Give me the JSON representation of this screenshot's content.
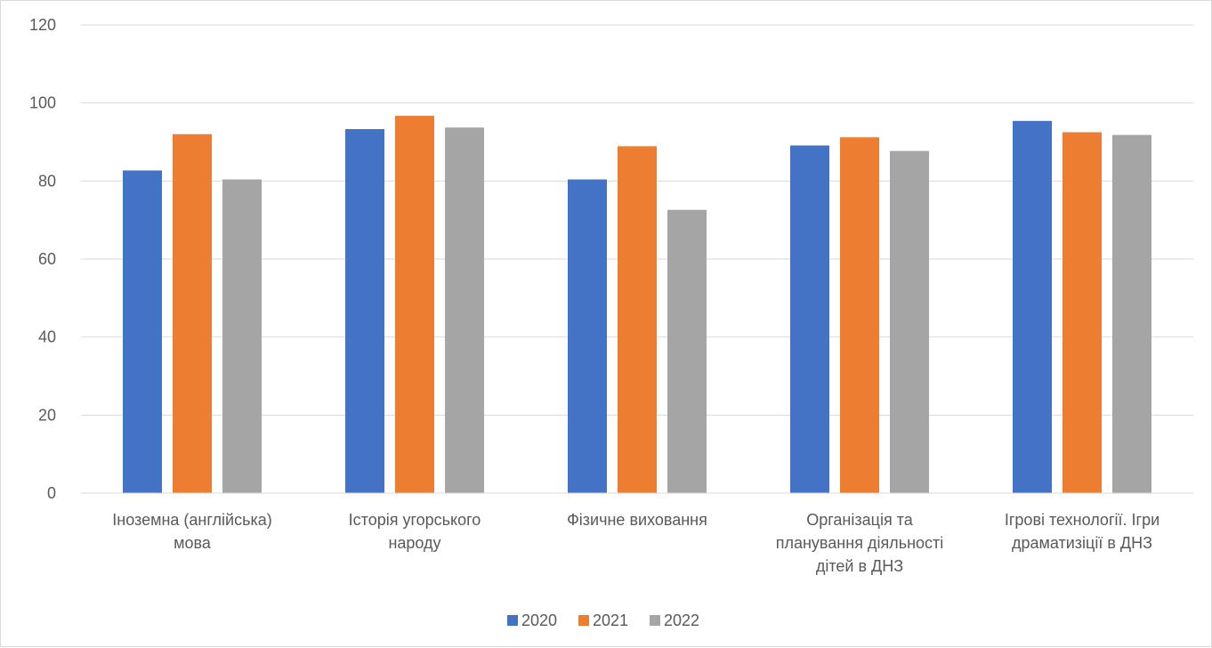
{
  "chart_data": {
    "type": "bar",
    "title": "",
    "xlabel": "",
    "ylabel": "",
    "ylim": [
      0,
      120
    ],
    "yticks": [
      0,
      20,
      40,
      60,
      80,
      100,
      120
    ],
    "grid": true,
    "legend_position": "bottom",
    "categories": [
      [
        "Іноземна (англійська)",
        "мова"
      ],
      [
        "Історія угорського",
        "народу"
      ],
      [
        "Фізичне виховання"
      ],
      [
        "Організація та",
        "планування діяльності",
        "дітей в ДНЗ"
      ],
      [
        "Ігрові технології. Ігри",
        "драматизіції в ДНЗ"
      ]
    ],
    "series": [
      {
        "name": "2020",
        "color": "#4472c4",
        "values": [
          82.7,
          93.3,
          80.4,
          89.1,
          95.4
        ]
      },
      {
        "name": "2021",
        "color": "#ed7d31",
        "values": [
          92.0,
          96.7,
          88.9,
          91.2,
          92.5
        ]
      },
      {
        "name": "2022",
        "color": "#a5a5a5",
        "values": [
          80.4,
          93.7,
          72.6,
          87.7,
          91.8
        ]
      }
    ]
  }
}
